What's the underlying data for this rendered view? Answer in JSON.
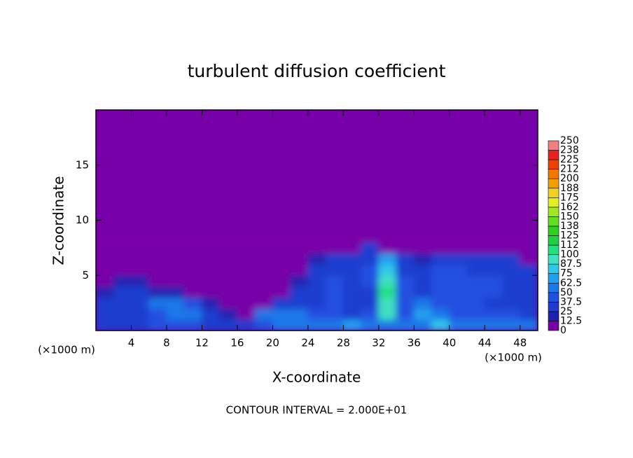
{
  "chart_data": {
    "type": "contour",
    "title": "turbulent diffusion coefficient",
    "x_label": "X-coordinate",
    "y_label": "Z-coordinate",
    "unit_labels": [
      "(×1000 m)",
      "(×1000 m)"
    ],
    "footer": "CONTOUR INTERVAL = 2.000E+01",
    "xlim": [
      0,
      50
    ],
    "ylim": [
      0,
      20
    ],
    "xticks": [
      4,
      8,
      12,
      16,
      20,
      24,
      28,
      32,
      36,
      40,
      44,
      48
    ],
    "yticks": [
      5,
      10,
      15
    ],
    "x": [
      1,
      3,
      5,
      7,
      9,
      11,
      13,
      15,
      17,
      19,
      21,
      23,
      25,
      27,
      29,
      31,
      33,
      35,
      37,
      39,
      41,
      43,
      45,
      47,
      49
    ],
    "y": [
      0.5,
      1.5,
      2.5,
      3.5,
      4.5,
      5.5,
      6.5,
      7.5,
      8.5
    ],
    "z": [
      [
        35,
        30,
        35,
        40,
        40,
        45,
        35,
        30,
        25,
        45,
        55,
        60,
        60,
        60,
        65,
        60,
        55,
        55,
        60,
        75,
        60,
        55,
        55,
        50,
        50
      ],
      [
        30,
        25,
        30,
        45,
        50,
        50,
        25,
        15,
        10,
        50,
        55,
        50,
        45,
        40,
        35,
        40,
        90,
        45,
        70,
        55,
        45,
        45,
        40,
        40,
        35
      ],
      [
        25,
        30,
        35,
        55,
        55,
        40,
        15,
        5,
        5,
        10,
        30,
        35,
        30,
        45,
        30,
        35,
        95,
        40,
        50,
        40,
        45,
        40,
        35,
        35,
        30
      ],
      [
        15,
        25,
        30,
        20,
        15,
        10,
        5,
        0,
        0,
        0,
        5,
        30,
        30,
        40,
        30,
        35,
        100,
        40,
        35,
        40,
        45,
        40,
        40,
        35,
        30
      ],
      [
        10,
        15,
        20,
        10,
        5,
        0,
        0,
        0,
        0,
        0,
        0,
        20,
        35,
        40,
        35,
        40,
        90,
        40,
        30,
        40,
        45,
        40,
        40,
        35,
        30
      ],
      [
        5,
        5,
        10,
        5,
        0,
        0,
        0,
        0,
        0,
        0,
        0,
        10,
        30,
        35,
        35,
        40,
        85,
        35,
        25,
        40,
        40,
        35,
        35,
        30,
        25
      ],
      [
        0,
        0,
        0,
        0,
        0,
        0,
        0,
        0,
        0,
        0,
        0,
        0,
        15,
        25,
        30,
        30,
        70,
        30,
        20,
        30,
        35,
        30,
        30,
        25,
        5
      ],
      [
        0,
        0,
        0,
        0,
        0,
        0,
        0,
        0,
        0,
        0,
        0,
        0,
        5,
        10,
        10,
        35,
        10,
        5,
        10,
        10,
        10,
        5,
        5,
        0,
        0
      ],
      [
        0,
        0,
        0,
        0,
        0,
        0,
        0,
        0,
        0,
        0,
        0,
        0,
        0,
        0,
        0,
        0,
        10,
        0,
        0,
        0,
        0,
        0,
        0,
        0,
        0
      ]
    ],
    "colorbar_levels": [
      0,
      12.5,
      25,
      37.5,
      50,
      62.5,
      75,
      87.5,
      100,
      {
        "value": 112.5,
        "label": "112"
      },
      125,
      {
        "value": 137.5,
        "label": "138"
      },
      150,
      {
        "value": 162.5,
        "label": "162"
      },
      175,
      {
        "value": 187.5,
        "label": "188"
      },
      200,
      {
        "value": 212.5,
        "label": "212"
      },
      225,
      {
        "value": 237.5,
        "label": "238"
      },
      250
    ],
    "colorbar_colors": [
      "#7800a8",
      "#2020b0",
      "#1e3ccf",
      "#2050e0",
      "#1a78e8",
      "#20a0f0",
      "#30c8e8",
      "#40e0c0",
      "#20e080",
      "#20d040",
      "#30d020",
      "#60e020",
      "#a0e820",
      "#e0f020",
      "#f0d020",
      "#f0a000",
      "#f07800",
      "#f04000",
      "#e82020",
      "#f08080"
    ]
  }
}
